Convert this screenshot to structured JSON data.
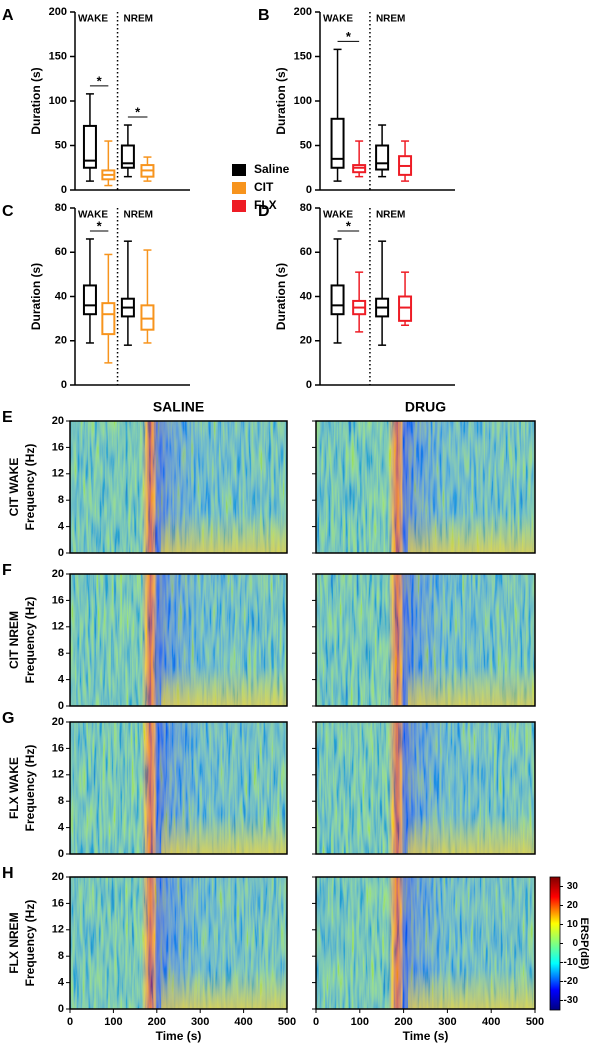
{
  "legend": [
    {
      "name": "Saline",
      "color": "#000000"
    },
    {
      "name": "CIT",
      "color": "#f7941d"
    },
    {
      "name": "FLX",
      "color": "#ee1c25"
    }
  ],
  "chart_data": [
    {
      "type": "box",
      "panel": "A",
      "ylabel": "Duration (s)",
      "ylim": [
        0,
        200
      ],
      "yticks": [
        0,
        50,
        100,
        150,
        200
      ],
      "groups": [
        "WAKE",
        "NREM"
      ],
      "significance": [
        "*",
        "*"
      ],
      "series": [
        {
          "color": "#000000",
          "stats": [
            10,
            25,
            33,
            72,
            108
          ]
        },
        {
          "color": "#f7941d",
          "stats": [
            5,
            12,
            17,
            22,
            55
          ]
        },
        {
          "color": "#000000",
          "stats": [
            15,
            25,
            30,
            50,
            73
          ]
        },
        {
          "color": "#f7941d",
          "stats": [
            10,
            15,
            22,
            28,
            37
          ]
        }
      ]
    },
    {
      "type": "box",
      "panel": "B",
      "ylabel": "Duration (s)",
      "ylim": [
        0,
        200
      ],
      "yticks": [
        0,
        50,
        100,
        150,
        200
      ],
      "groups": [
        "WAKE",
        "NREM"
      ],
      "significance": [
        "*",
        null
      ],
      "series": [
        {
          "color": "#000000",
          "stats": [
            10,
            25,
            35,
            80,
            158
          ]
        },
        {
          "color": "#ee1c25",
          "stats": [
            15,
            20,
            25,
            28,
            55
          ]
        },
        {
          "color": "#000000",
          "stats": [
            15,
            23,
            30,
            50,
            73
          ]
        },
        {
          "color": "#ee1c25",
          "stats": [
            10,
            17,
            27,
            38,
            55
          ]
        }
      ]
    },
    {
      "type": "box",
      "panel": "C",
      "ylabel": "Duration (s)",
      "ylim": [
        0,
        80
      ],
      "yticks": [
        0,
        20,
        40,
        60,
        80
      ],
      "groups": [
        "WAKE",
        "NREM"
      ],
      "significance": [
        "*",
        null
      ],
      "series": [
        {
          "color": "#000000",
          "stats": [
            19,
            32,
            36,
            45,
            66
          ]
        },
        {
          "color": "#f7941d",
          "stats": [
            10,
            23,
            32,
            37,
            59
          ]
        },
        {
          "color": "#000000",
          "stats": [
            18,
            31,
            35,
            39,
            65
          ]
        },
        {
          "color": "#f7941d",
          "stats": [
            19,
            25,
            30,
            36,
            61
          ]
        }
      ]
    },
    {
      "type": "box",
      "panel": "D",
      "ylabel": "Duration (s)",
      "ylim": [
        0,
        80
      ],
      "yticks": [
        0,
        20,
        40,
        60,
        80
      ],
      "groups": [
        "WAKE",
        "NREM"
      ],
      "significance": [
        "*",
        null
      ],
      "series": [
        {
          "color": "#000000",
          "stats": [
            19,
            32,
            36,
            45,
            66
          ]
        },
        {
          "color": "#ee1c25",
          "stats": [
            24,
            32,
            35,
            38,
            51
          ]
        },
        {
          "color": "#000000",
          "stats": [
            18,
            31,
            35,
            39,
            65
          ]
        },
        {
          "color": "#ee1c25",
          "stats": [
            27,
            29,
            35,
            40,
            51
          ]
        }
      ]
    },
    {
      "type": "spectrogram",
      "columns": [
        "SALINE",
        "DRUG"
      ],
      "rows": [
        {
          "panel": "E",
          "label": "CIT WAKE"
        },
        {
          "panel": "F",
          "label": "CIT NREM"
        },
        {
          "panel": "G",
          "label": "FLX WAKE"
        },
        {
          "panel": "H",
          "label": "FLX NREM"
        }
      ],
      "ylabel": "Frequency (Hz)",
      "ylim": [
        0,
        20
      ],
      "yticks": [
        0,
        4,
        8,
        12,
        16,
        20
      ],
      "xlabel": "Time (s)",
      "xlim": [
        0,
        500
      ],
      "xticks": [
        0,
        100,
        200,
        300,
        400,
        500
      ],
      "colorbar": {
        "label": "ERSP(dB)",
        "lim": [
          -35,
          35
        ],
        "ticks": [
          30,
          20,
          10,
          0,
          -10,
          -20,
          -30
        ]
      }
    }
  ]
}
